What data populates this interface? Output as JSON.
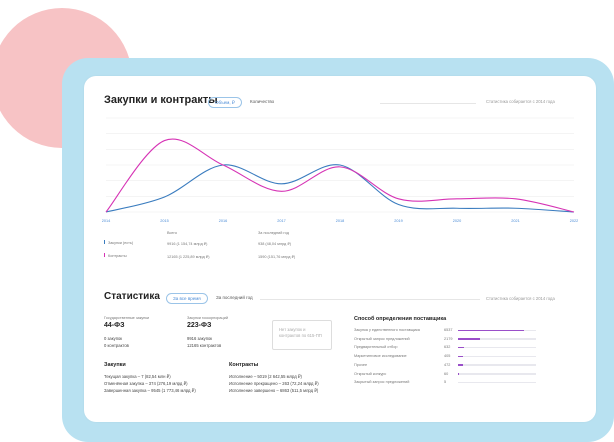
{
  "header": {
    "title": "Закупки и контракты",
    "pill_volume": "Объем, ₽",
    "tab_count": "Количество",
    "note": "Статистика собирается с 2014 года"
  },
  "chart_data": {
    "type": "line",
    "x": [
      "2014",
      "2015",
      "2016",
      "2017",
      "2018",
      "2019",
      "2020",
      "2021",
      "2022"
    ],
    "ylim": [
      0,
      100
    ],
    "grid": true,
    "series": [
      {
        "name": "Закупки (есть)",
        "color": "#3a7cbf",
        "values": [
          0,
          16,
          50,
          30,
          50,
          8,
          4,
          4,
          0
        ]
      },
      {
        "name": "Контракты",
        "color": "#d633b5",
        "values": [
          0,
          76,
          50,
          22,
          48,
          14,
          14,
          14,
          0
        ]
      }
    ]
  },
  "legend": {
    "col_total": "Всего",
    "col_last": "За последний год",
    "rows": [
      {
        "name": "Закупки (есть)",
        "color": "#3a7cbf",
        "total": "9916 (1 154,74 млрд ₽)",
        "last": "938 (48,04 млрд ₽)"
      },
      {
        "name": "Контракты",
        "color": "#d633b5",
        "total": "12165 (1 225,89 млрд ₽)",
        "last": "1590 (151,76 млрд ₽)"
      }
    ]
  },
  "stats": {
    "title": "Статистика",
    "pill_all": "За все время",
    "tab_last": "За последний год",
    "note": "Статистика собирается с 2014 года",
    "law1": {
      "caption": "Государственные закупки",
      "name": "44-ФЗ",
      "line1": "0 закупок",
      "line2": "0 контрактов"
    },
    "law2": {
      "caption": "Закупки госкорпораций",
      "name": "223-ФЗ",
      "line1": "9916 закупок",
      "line2": "12165 контрактов"
    },
    "box_line1": "Нет закупок и",
    "box_line2": "контрактов по 615-ПП"
  },
  "purchases": {
    "title": "Закупки",
    "lines": [
      "Текущая закупка – 7 (82,54 млн ₽)",
      "Отменённая закупка – 374 (276,19 млрд ₽)",
      "Завершенная закупка – 9545 (1 773,46 млрд ₽)"
    ]
  },
  "contracts": {
    "title": "Контракты",
    "lines": [
      "Исполнение – 5019 (2 642,55 млрд ₽)",
      "Исполнение прекращено – 263 (72,24 млрд ₽)",
      "Исполнение завершено – 6863 (511,5 млрд ₽)"
    ]
  },
  "methods": {
    "title": "Способ определения поставщика",
    "items": [
      {
        "label": "Закупка у единственного поставщика",
        "count": "6537",
        "fraction": 0.84
      },
      {
        "label": "Открытый запрос предложений",
        "count": "2179",
        "fraction": 0.28
      },
      {
        "label": "Предварительный отбор",
        "count": "632",
        "fraction": 0.08
      },
      {
        "label": "Маркетинговое исследование",
        "count": "405",
        "fraction": 0.06
      },
      {
        "label": "Прочее",
        "count": "472",
        "fraction": 0.06
      },
      {
        "label": "Открытый конкурс",
        "count": "60",
        "fraction": 0.01
      },
      {
        "label": "Закрытый запрос предложений",
        "count": "5",
        "fraction": 0.0
      }
    ]
  }
}
